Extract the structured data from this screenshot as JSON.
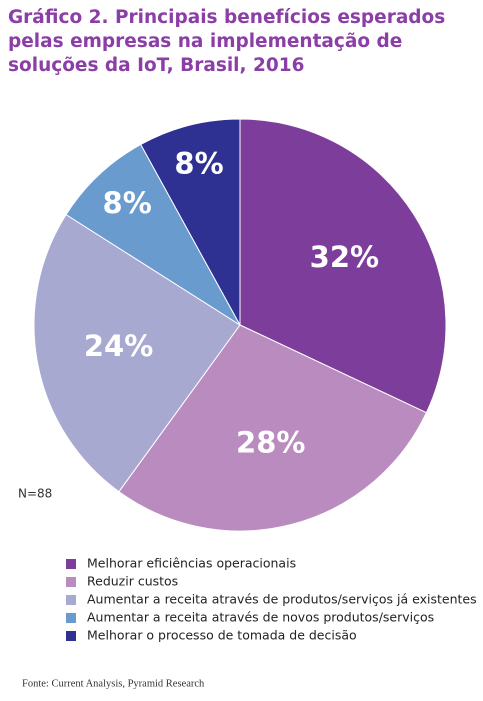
{
  "chart_data": {
    "type": "pie",
    "title": "Gráfico 2. Principais benefícios esperados pelas empresas na implementação de soluções da IoT, Brasil, 2016",
    "categories": [
      "Melhorar eficiências operacionais",
      "Reduzir custos",
      "Aumentar a receita através de produtos/serviços já existentes",
      "Aumentar a receita através de novos produtos/serviços",
      "Melhorar o processo de tomada de decisão"
    ],
    "values": [
      32,
      28,
      24,
      8,
      8
    ],
    "value_labels": [
      "32%",
      "28%",
      "24%",
      "8%",
      "8%"
    ],
    "colors": [
      "#7d3d9b",
      "#b98bbf",
      "#a7a9d0",
      "#6a9bcf",
      "#2e3192"
    ],
    "note": "N=88",
    "source": "Fonte: Current Analysis, Pyramid Research"
  }
}
